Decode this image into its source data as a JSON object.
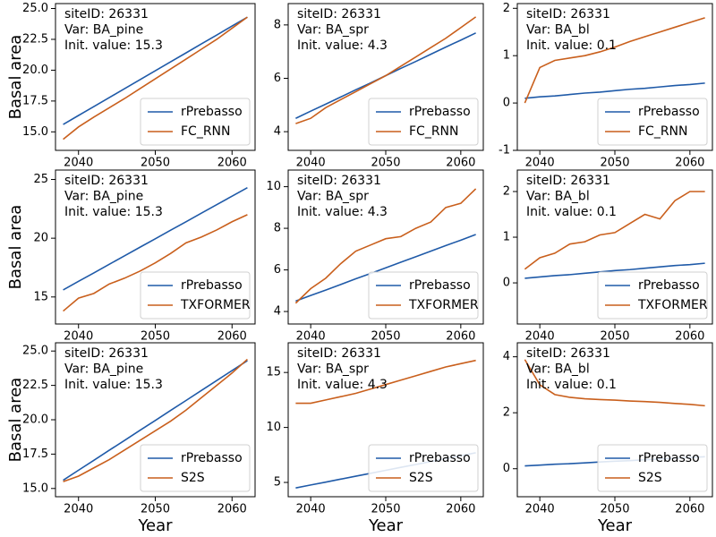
{
  "chart_data": [
    {
      "type": "line",
      "annotations": [
        "siteID: 26331",
        "Var: BA_pine",
        "Init. value: 15.3"
      ],
      "ylabel": "Basal area",
      "x": [
        2038,
        2040,
        2042,
        2044,
        2046,
        2048,
        2050,
        2052,
        2054,
        2056,
        2058,
        2060,
        2062
      ],
      "xlim": [
        2037,
        2063
      ],
      "xticks": [
        2040,
        2050,
        2060
      ],
      "ylim": [
        13.5,
        25.4
      ],
      "yticks": [
        {
          "value": 15,
          "label": "15.0"
        },
        17.5,
        {
          "value": 20,
          "label": "20.0"
        },
        22.5,
        {
          "value": 25,
          "label": "25.0"
        }
      ],
      "legend": "lower right",
      "series": [
        {
          "name": "rPrebasso",
          "color": "#1f5aa8",
          "values": [
            15.6,
            16.33,
            17.05,
            17.78,
            18.5,
            19.23,
            19.95,
            20.68,
            21.4,
            22.13,
            22.85,
            23.58,
            24.3
          ]
        },
        {
          "name": "FC_RNN",
          "color": "#c95f1c",
          "values": [
            14.4,
            15.4,
            16.2,
            16.95,
            17.7,
            18.5,
            19.3,
            20.1,
            20.9,
            21.7,
            22.5,
            23.4,
            24.3
          ]
        }
      ]
    },
    {
      "type": "line",
      "annotations": [
        "siteID: 26331",
        "Var: BA_spr",
        "Init. value: 4.3"
      ],
      "x": [
        2038,
        2040,
        2042,
        2044,
        2046,
        2048,
        2050,
        2052,
        2054,
        2056,
        2058,
        2060,
        2062
      ],
      "xlim": [
        2037,
        2063
      ],
      "xticks": [
        2040,
        2050,
        2060
      ],
      "ylim": [
        3.3,
        8.8
      ],
      "yticks": [
        4,
        6,
        8
      ],
      "legend": "lower right",
      "series": [
        {
          "name": "rPrebasso",
          "color": "#1f5aa8",
          "values": [
            4.5,
            4.77,
            5.03,
            5.3,
            5.57,
            5.83,
            6.1,
            6.37,
            6.63,
            6.9,
            7.17,
            7.43,
            7.7
          ]
        },
        {
          "name": "FC_RNN",
          "color": "#c95f1c",
          "values": [
            4.3,
            4.5,
            4.9,
            5.2,
            5.5,
            5.8,
            6.1,
            6.45,
            6.8,
            7.15,
            7.5,
            7.9,
            8.3
          ]
        }
      ]
    },
    {
      "type": "line",
      "annotations": [
        "siteID: 26331",
        "Var: BA_bl",
        "Init. value: 0.1"
      ],
      "x": [
        2038,
        2040,
        2042,
        2044,
        2046,
        2048,
        2050,
        2052,
        2054,
        2056,
        2058,
        2060,
        2062
      ],
      "xlim": [
        2037,
        2063
      ],
      "xticks": [
        2040,
        2050,
        2060
      ],
      "ylim": [
        -1,
        2.1
      ],
      "yticks": [
        -1,
        0,
        1,
        2
      ],
      "legend": "lower right",
      "series": [
        {
          "name": "rPrebasso",
          "color": "#1f5aa8",
          "values": [
            0.1,
            0.13,
            0.15,
            0.18,
            0.21,
            0.23,
            0.26,
            0.29,
            0.31,
            0.34,
            0.37,
            0.39,
            0.42
          ]
        },
        {
          "name": "FC_RNN",
          "color": "#c95f1c",
          "values": [
            0.0,
            0.75,
            0.9,
            0.95,
            1.0,
            1.08,
            1.18,
            1.3,
            1.4,
            1.5,
            1.6,
            1.7,
            1.8
          ]
        }
      ]
    },
    {
      "type": "line",
      "annotations": [
        "siteID: 26331",
        "Var: BA_pine",
        "Init. value: 15.3"
      ],
      "ylabel": "Basal area",
      "x": [
        2038,
        2040,
        2042,
        2044,
        2046,
        2048,
        2050,
        2052,
        2054,
        2056,
        2058,
        2060,
        2062
      ],
      "xlim": [
        2037,
        2063
      ],
      "xticks": [
        2040,
        2050,
        2060
      ],
      "ylim": [
        12.7,
        25.8
      ],
      "yticks": [
        15,
        20,
        25
      ],
      "legend": "lower right",
      "series": [
        {
          "name": "rPrebasso",
          "color": "#1f5aa8",
          "values": [
            15.6,
            16.33,
            17.05,
            17.78,
            18.5,
            19.23,
            19.95,
            20.68,
            21.4,
            22.13,
            22.85,
            23.58,
            24.3
          ]
        },
        {
          "name": "TXFORMER",
          "color": "#c95f1c",
          "values": [
            13.8,
            14.9,
            15.3,
            16.1,
            16.6,
            17.2,
            17.9,
            18.7,
            19.6,
            20.1,
            20.7,
            21.4,
            22.0
          ]
        }
      ]
    },
    {
      "type": "line",
      "annotations": [
        "siteID: 26331",
        "Var: BA_spr",
        "Init. value: 4.3"
      ],
      "x": [
        2038,
        2040,
        2042,
        2044,
        2046,
        2048,
        2050,
        2052,
        2054,
        2056,
        2058,
        2060,
        2062
      ],
      "xlim": [
        2037,
        2063
      ],
      "xticks": [
        2040,
        2050,
        2060
      ],
      "ylim": [
        3.4,
        10.8
      ],
      "yticks": [
        4,
        6,
        8,
        10
      ],
      "legend": "lower right",
      "series": [
        {
          "name": "rPrebasso",
          "color": "#1f5aa8",
          "values": [
            4.5,
            4.77,
            5.03,
            5.3,
            5.57,
            5.83,
            6.1,
            6.37,
            6.63,
            6.9,
            7.17,
            7.43,
            7.7
          ]
        },
        {
          "name": "TXFORMER",
          "color": "#c95f1c",
          "values": [
            4.4,
            5.1,
            5.6,
            6.3,
            6.9,
            7.2,
            7.5,
            7.6,
            8.0,
            8.3,
            9.0,
            9.2,
            9.9
          ]
        }
      ]
    },
    {
      "type": "line",
      "annotations": [
        "siteID: 26331",
        "Var: BA_bl",
        "Init. value: 0.1"
      ],
      "x": [
        2038,
        2040,
        2042,
        2044,
        2046,
        2048,
        2050,
        2052,
        2054,
        2056,
        2058,
        2060,
        2062
      ],
      "xlim": [
        2037,
        2063
      ],
      "xticks": [
        2040,
        2050,
        2060
      ],
      "ylim": [
        -0.9,
        2.47
      ],
      "yticks": [
        0,
        1,
        2
      ],
      "legend": "lower right",
      "series": [
        {
          "name": "rPrebasso",
          "color": "#1f5aa8",
          "values": [
            0.1,
            0.13,
            0.16,
            0.18,
            0.21,
            0.24,
            0.27,
            0.29,
            0.32,
            0.35,
            0.38,
            0.4,
            0.43
          ]
        },
        {
          "name": "TXFORMER",
          "color": "#c95f1c",
          "values": [
            0.3,
            0.55,
            0.65,
            0.85,
            0.9,
            1.05,
            1.1,
            1.3,
            1.5,
            1.4,
            1.8,
            2.0,
            2.0
          ]
        }
      ]
    },
    {
      "type": "line",
      "annotations": [
        "siteID: 26331",
        "Var: BA_pine",
        "Init. value: 15.3"
      ],
      "ylabel": "Basal area",
      "xlabel": "Year",
      "x": [
        2038,
        2040,
        2042,
        2044,
        2046,
        2048,
        2050,
        2052,
        2054,
        2056,
        2058,
        2060,
        2062
      ],
      "xlim": [
        2037,
        2063
      ],
      "xticks": [
        2040,
        2050,
        2060
      ],
      "ylim": [
        14.4,
        25.6
      ],
      "yticks": [
        {
          "value": 15,
          "label": "15.0"
        },
        17.5,
        {
          "value": 20,
          "label": "20.0"
        },
        22.5,
        {
          "value": 25,
          "label": "25.0"
        }
      ],
      "legend": "lower right",
      "series": [
        {
          "name": "rPrebasso",
          "color": "#1f5aa8",
          "values": [
            15.6,
            16.33,
            17.05,
            17.78,
            18.5,
            19.23,
            19.95,
            20.68,
            21.4,
            22.13,
            22.85,
            23.58,
            24.3
          ]
        },
        {
          "name": "S2S",
          "color": "#c95f1c",
          "values": [
            15.5,
            15.9,
            16.5,
            17.1,
            17.8,
            18.5,
            19.2,
            19.9,
            20.7,
            21.6,
            22.5,
            23.4,
            24.4
          ]
        }
      ]
    },
    {
      "type": "line",
      "annotations": [
        "siteID: 26331",
        "Var: BA_spr",
        "Init. value: 4.3"
      ],
      "xlabel": "Year",
      "x": [
        2038,
        2040,
        2042,
        2044,
        2046,
        2048,
        2050,
        2052,
        2054,
        2056,
        2058,
        2060,
        2062
      ],
      "xlim": [
        2037,
        2063
      ],
      "xticks": [
        2040,
        2050,
        2060
      ],
      "ylim": [
        3.7,
        17.7
      ],
      "yticks": [
        5,
        10,
        15
      ],
      "legend": "lower right",
      "series": [
        {
          "name": "rPrebasso",
          "color": "#1f5aa8",
          "values": [
            4.5,
            4.77,
            5.03,
            5.3,
            5.57,
            5.83,
            6.1,
            6.37,
            6.63,
            6.9,
            7.17,
            7.43,
            7.7
          ]
        },
        {
          "name": "S2S",
          "color": "#c95f1c",
          "values": [
            12.2,
            12.2,
            12.5,
            12.8,
            13.1,
            13.5,
            13.9,
            14.3,
            14.7,
            15.1,
            15.5,
            15.8,
            16.1
          ]
        }
      ]
    },
    {
      "type": "line",
      "annotations": [
        "siteID: 26331",
        "Var: BA_bl",
        "Init. value: 0.1"
      ],
      "xlabel": "Year",
      "x": [
        2038,
        2040,
        2042,
        2044,
        2046,
        2048,
        2050,
        2052,
        2054,
        2056,
        2058,
        2060,
        2062
      ],
      "xlim": [
        2037,
        2063
      ],
      "xticks": [
        2040,
        2050,
        2060
      ],
      "ylim": [
        -1,
        4.5
      ],
      "yticks": [
        0,
        2,
        4
      ],
      "legend": "lower right",
      "series": [
        {
          "name": "rPrebasso",
          "color": "#1f5aa8",
          "values": [
            0.1,
            0.13,
            0.16,
            0.18,
            0.21,
            0.24,
            0.27,
            0.29,
            0.32,
            0.35,
            0.38,
            0.4,
            0.43
          ]
        },
        {
          "name": "S2S",
          "color": "#c95f1c",
          "values": [
            3.9,
            3.0,
            2.65,
            2.55,
            2.5,
            2.47,
            2.45,
            2.42,
            2.4,
            2.37,
            2.33,
            2.3,
            2.25
          ]
        }
      ]
    }
  ]
}
